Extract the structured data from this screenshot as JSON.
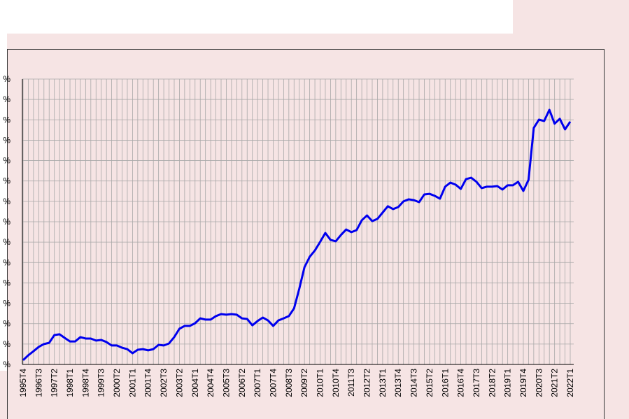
{
  "chart_data": {
    "type": "line",
    "categories": [
      "1995T4",
      null,
      null,
      "1996T3",
      null,
      null,
      "1997T2",
      null,
      null,
      "1998T1",
      null,
      null,
      "1998T4",
      null,
      null,
      "1999T3",
      null,
      null,
      "2000T2",
      null,
      null,
      "2001T1",
      null,
      null,
      "2001T4",
      null,
      null,
      "2002T3",
      null,
      null,
      "2003T2",
      null,
      null,
      "2004T1",
      null,
      null,
      "2004T4",
      null,
      null,
      "2005T3",
      null,
      null,
      "2006T2",
      null,
      null,
      "2007T1",
      null,
      null,
      "2007T4",
      null,
      null,
      "2008T3",
      null,
      null,
      "2009T2",
      null,
      null,
      "2010T1",
      null,
      null,
      "2010T4",
      null,
      null,
      "2011T3",
      null,
      null,
      "2012T2",
      null,
      null,
      "2013T1",
      null,
      null,
      "2013T4",
      null,
      null,
      "2014T3",
      null,
      null,
      "2015T2",
      null,
      null,
      "2016T1",
      null,
      null,
      "2016T4",
      null,
      null,
      "2017T3",
      null,
      null,
      "2018T2",
      null,
      null,
      "2019T1",
      null,
      null,
      "2019T4",
      null,
      null,
      "2020T3",
      null,
      null,
      "2021T2",
      null,
      null,
      "2022T1"
    ],
    "series": [
      {
        "color": "#0000ee",
        "values": [
          0.21,
          0.45,
          0.65,
          0.86,
          1.0,
          1.06,
          1.44,
          1.48,
          1.3,
          1.13,
          1.13,
          1.34,
          1.27,
          1.27,
          1.17,
          1.2,
          1.1,
          0.93,
          0.93,
          0.82,
          0.75,
          0.55,
          0.72,
          0.75,
          0.69,
          0.75,
          0.96,
          0.93,
          1.03,
          1.34,
          1.75,
          1.89,
          1.89,
          2.02,
          2.26,
          2.2,
          2.2,
          2.37,
          2.47,
          2.44,
          2.47,
          2.44,
          2.26,
          2.23,
          1.92,
          2.13,
          2.3,
          2.16,
          1.89,
          2.16,
          2.26,
          2.37,
          2.75,
          3.71,
          4.77,
          5.28,
          5.59,
          6.01,
          6.45,
          6.11,
          6.04,
          6.35,
          6.62,
          6.49,
          6.59,
          7.07,
          7.31,
          7.03,
          7.14,
          7.45,
          7.76,
          7.62,
          7.72,
          8.0,
          8.1,
          8.06,
          7.96,
          8.34,
          8.37,
          8.27,
          8.13,
          8.72,
          8.92,
          8.82,
          8.61,
          9.09,
          9.16,
          8.96,
          8.65,
          8.72,
          8.72,
          8.75,
          8.58,
          8.79,
          8.79,
          8.96,
          8.51,
          9.06,
          11.6,
          12.01,
          11.94,
          12.49,
          11.81,
          12.05,
          11.53,
          11.91
        ]
      }
    ],
    "ylim": [
      0,
      14
    ],
    "yticks": [
      {
        "value": 0,
        "label": "%"
      },
      {
        "value": 1,
        "label": "%"
      },
      {
        "value": 2,
        "label": "%"
      },
      {
        "value": 3,
        "label": "%"
      },
      {
        "value": 4,
        "label": "%"
      },
      {
        "value": 5,
        "label": "%"
      },
      {
        "value": 6,
        "label": "%"
      },
      {
        "value": 7,
        "label": "%"
      },
      {
        "value": 8,
        "label": "%"
      },
      {
        "value": 9,
        "label": "%"
      },
      {
        "value": 10,
        "label": "%"
      },
      {
        "value": 11,
        "label": "%"
      },
      {
        "value": 12,
        "label": "%"
      },
      {
        "value": 13,
        "label": "%"
      },
      {
        "value": 14,
        "label": "%"
      }
    ],
    "grid": true
  }
}
